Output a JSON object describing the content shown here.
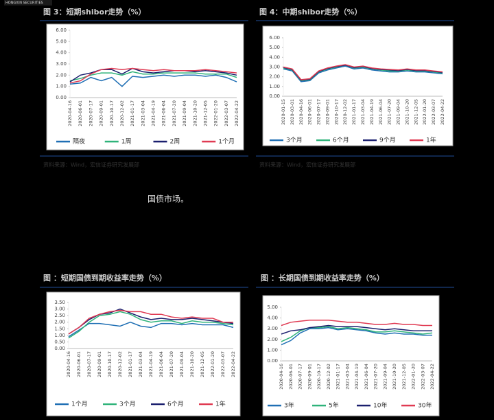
{
  "header": {
    "logo": "HONGXIN SECURITIES"
  },
  "text": "国债市场。",
  "chart_data": [
    {
      "type": "line",
      "title": "图 3：短期shibor走势（%）",
      "source": "资料来源：Wind，宏信证券研究发展部",
      "categories": [
        "2020-04-16",
        "2020-06-01",
        "2020-07-17",
        "2020-09-01",
        "2020-10-17",
        "2020-12-02",
        "2021-01-17",
        "2021-03-04",
        "2021-04-19",
        "2021-06-04",
        "2021-07-20",
        "2021-09-04",
        "2021-10-20",
        "2021-12-05",
        "2022-01-20",
        "2022-03-07",
        "2022-04-22"
      ],
      "ylim": [
        0,
        6
      ],
      "yticks": [
        {
          "value": 0,
          "label": "0.00"
        },
        {
          "value": 1,
          "label": "1.00"
        },
        {
          "value": 2,
          "label": "2.00"
        },
        {
          "value": 3,
          "label": "3.00"
        },
        {
          "value": 4,
          "label": "4.00"
        },
        {
          "value": 5,
          "label": "5.00"
        },
        {
          "value": 6,
          "label": "6.00"
        }
      ],
      "series": [
        {
          "name": "隔夜",
          "color": "#1f6fb4",
          "values": [
            1.2,
            1.3,
            1.8,
            1.5,
            1.8,
            1.0,
            1.9,
            1.8,
            1.9,
            2.0,
            1.9,
            2.0,
            2.0,
            1.9,
            2.0,
            1.8,
            1.4
          ]
        },
        {
          "name": "1周",
          "color": "#2fb37a",
          "values": [
            1.5,
            1.7,
            2.0,
            2.2,
            2.2,
            2.0,
            2.3,
            2.1,
            2.1,
            2.2,
            2.2,
            2.2,
            2.2,
            2.1,
            2.1,
            2.1,
            1.8
          ]
        },
        {
          "name": "2周",
          "color": "#1a1f6e",
          "values": [
            1.4,
            2.0,
            2.2,
            2.5,
            2.5,
            2.1,
            2.6,
            2.3,
            2.2,
            2.3,
            2.4,
            2.4,
            2.3,
            2.4,
            2.3,
            2.2,
            2.0
          ]
        },
        {
          "name": "1个月",
          "color": "#e03a52",
          "values": [
            1.3,
            1.5,
            2.1,
            2.5,
            2.6,
            2.5,
            2.6,
            2.5,
            2.4,
            2.5,
            2.4,
            2.4,
            2.4,
            2.5,
            2.4,
            2.3,
            2.2
          ]
        }
      ]
    },
    {
      "type": "line",
      "title": "图 4：中期shibor走势（%）",
      "source": "资料来源：Wind，宏信证券研究发展部",
      "categories": [
        "2020-01-15",
        "2020-03-01",
        "2020-04-16",
        "2020-06-01",
        "2020-07-17",
        "2020-09-01",
        "2020-10-17",
        "2020-12-02",
        "2021-01-17",
        "2021-03-04",
        "2021-04-19",
        "2021-06-04",
        "2021-07-20",
        "2021-09-04",
        "2021-10-20",
        "2021-12-05",
        "2022-01-20",
        "2022-03-07",
        "2022-04-22"
      ],
      "ylim": [
        0,
        6
      ],
      "yticks": [
        {
          "value": 0,
          "label": "0.00"
        },
        {
          "value": 1,
          "label": "1.00"
        },
        {
          "value": 2,
          "label": "2.00"
        },
        {
          "value": 3,
          "label": "3.00"
        },
        {
          "value": 4,
          "label": "4.00"
        },
        {
          "value": 5,
          "label": "5.00"
        },
        {
          "value": 6,
          "label": "6.00"
        }
      ],
      "series": [
        {
          "name": "3个月",
          "color": "#1f6fb4",
          "values": [
            2.8,
            2.6,
            1.5,
            1.6,
            2.4,
            2.7,
            2.9,
            3.1,
            2.8,
            2.9,
            2.7,
            2.6,
            2.5,
            2.5,
            2.6,
            2.5,
            2.5,
            2.4,
            2.3
          ]
        },
        {
          "name": "6个月",
          "color": "#2fb37a",
          "values": [
            2.9,
            2.7,
            1.6,
            1.7,
            2.5,
            2.8,
            3.0,
            3.2,
            2.9,
            3.0,
            2.8,
            2.7,
            2.6,
            2.6,
            2.7,
            2.6,
            2.6,
            2.5,
            2.4
          ]
        },
        {
          "name": "9个月",
          "color": "#1a1f6e",
          "values": [
            2.95,
            2.75,
            1.65,
            1.75,
            2.55,
            2.85,
            3.05,
            3.2,
            2.95,
            3.05,
            2.85,
            2.75,
            2.7,
            2.65,
            2.75,
            2.65,
            2.65,
            2.55,
            2.45
          ]
        },
        {
          "name": "1年",
          "color": "#e03a52",
          "values": [
            3.0,
            2.8,
            1.7,
            1.8,
            2.6,
            2.9,
            3.1,
            3.25,
            3.0,
            3.1,
            2.9,
            2.8,
            2.75,
            2.7,
            2.8,
            2.7,
            2.7,
            2.6,
            2.5
          ]
        }
      ]
    },
    {
      "type": "line",
      "title": "图 ：短期国债到期收益率走势（%）",
      "categories": [
        "2020-04-16",
        "2020-06-01",
        "2020-07-17",
        "2020-09-01",
        "2020-10-17",
        "2020-12-02",
        "2021-01-17",
        "2021-03-04",
        "2021-04-19",
        "2021-06-04",
        "2021-07-20",
        "2021-09-04",
        "2021-10-20",
        "2021-12-05",
        "2022-01-20",
        "2022-03-07",
        "2022-04-22"
      ],
      "ylim": [
        0,
        3.5
      ],
      "yticks": [
        {
          "value": 0,
          "label": "0.00"
        },
        {
          "value": 0.5,
          "label": "0.50"
        },
        {
          "value": 1,
          "label": "1.00"
        },
        {
          "value": 1.5,
          "label": "1.50"
        },
        {
          "value": 2,
          "label": "2.00"
        },
        {
          "value": 2.5,
          "label": "2.50"
        },
        {
          "value": 3,
          "label": "3.00"
        },
        {
          "value": 3.5,
          "label": "3.50"
        }
      ],
      "series": [
        {
          "name": "1个月",
          "color": "#1f6fb4",
          "values": [
            0.9,
            1.4,
            1.9,
            1.9,
            1.8,
            1.7,
            2.0,
            1.7,
            1.6,
            1.9,
            1.9,
            1.8,
            1.9,
            1.8,
            1.8,
            1.8,
            1.6
          ]
        },
        {
          "name": "3个月",
          "color": "#2fb37a",
          "values": [
            0.8,
            1.3,
            2.0,
            2.5,
            2.6,
            2.8,
            2.6,
            2.2,
            2.0,
            2.1,
            2.1,
            1.9,
            2.1,
            2.0,
            2.0,
            1.9,
            1.8
          ]
        },
        {
          "name": "6个月",
          "color": "#1a1f6e",
          "values": [
            1.1,
            1.6,
            2.2,
            2.6,
            2.7,
            3.0,
            2.7,
            2.4,
            2.2,
            2.3,
            2.2,
            2.2,
            2.3,
            2.2,
            2.1,
            2.0,
            1.9
          ]
        },
        {
          "name": "1年",
          "color": "#e03a52",
          "values": [
            1.1,
            1.6,
            2.3,
            2.6,
            2.8,
            2.9,
            2.8,
            2.8,
            2.6,
            2.6,
            2.4,
            2.3,
            2.4,
            2.3,
            2.3,
            2.0,
            2.0
          ]
        }
      ]
    },
    {
      "type": "line",
      "title": "图 ：长期国债到期收益率走势（%）",
      "categories": [
        "2020-04-16",
        "2020-06-01",
        "2020-07-17",
        "2020-09-01",
        "2020-10-17",
        "2020-12-02",
        "2021-01-17",
        "2021-03-04",
        "2021-04-19",
        "2021-06-04",
        "2021-07-20",
        "2021-09-04",
        "2021-10-20",
        "2021-12-05",
        "2022-01-20",
        "2022-03-07",
        "2022-04-22"
      ],
      "ylim": [
        0,
        5
      ],
      "yticks": [
        {
          "value": 0,
          "label": "0.00"
        },
        {
          "value": 1,
          "label": "1.00"
        },
        {
          "value": 2,
          "label": "2.00"
        },
        {
          "value": 3,
          "label": "3.00"
        },
        {
          "value": 4,
          "label": "4.00"
        },
        {
          "value": 5,
          "label": "5.00"
        }
      ],
      "series": [
        {
          "name": "3年",
          "color": "#1f6fb4",
          "values": [
            1.5,
            1.9,
            2.6,
            3.0,
            3.0,
            3.1,
            2.9,
            3.0,
            2.9,
            2.8,
            2.6,
            2.5,
            2.6,
            2.5,
            2.5,
            2.4,
            2.4
          ]
        },
        {
          "name": "5年",
          "color": "#2fb37a",
          "values": [
            1.8,
            2.2,
            2.8,
            3.1,
            3.1,
            3.2,
            3.0,
            3.1,
            3.0,
            2.9,
            2.7,
            2.7,
            2.8,
            2.7,
            2.6,
            2.5,
            2.6
          ]
        },
        {
          "name": "10年",
          "color": "#1a1f6e",
          "values": [
            2.5,
            2.8,
            2.9,
            3.1,
            3.2,
            3.3,
            3.2,
            3.2,
            3.2,
            3.1,
            3.0,
            2.9,
            3.0,
            2.9,
            2.8,
            2.8,
            2.8
          ]
        },
        {
          "name": "30年",
          "color": "#e03a52",
          "values": [
            3.3,
            3.6,
            3.7,
            3.8,
            3.8,
            3.8,
            3.7,
            3.6,
            3.6,
            3.5,
            3.4,
            3.4,
            3.5,
            3.4,
            3.4,
            3.3,
            3.3
          ]
        }
      ]
    }
  ]
}
